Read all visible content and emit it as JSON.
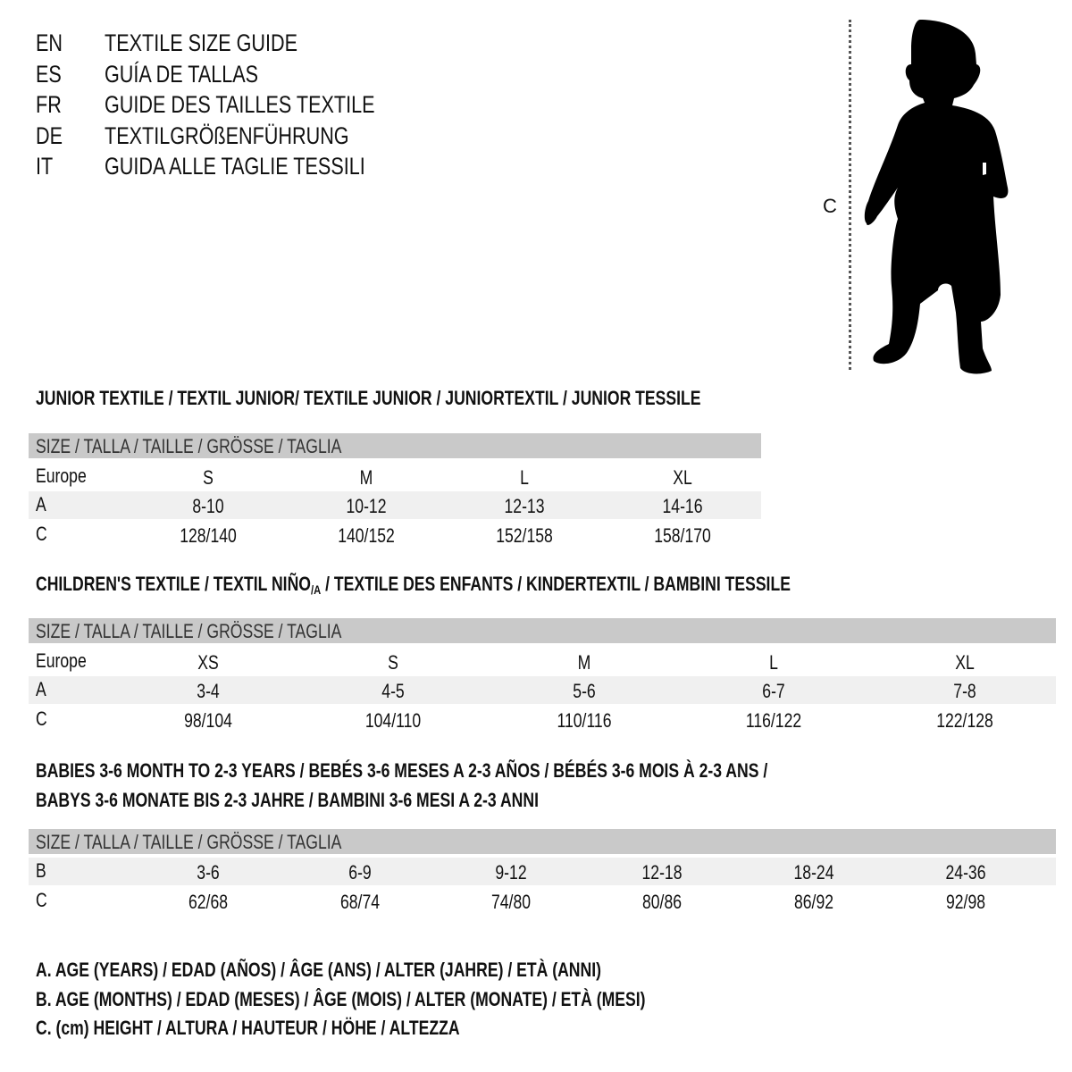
{
  "titles": [
    {
      "code": "EN",
      "text": "TEXTILE SIZE GUIDE"
    },
    {
      "code": "ES",
      "text": "GUÍA DE TALLAS"
    },
    {
      "code": "FR",
      "text": "GUIDE DES TAILLES TEXTILE"
    },
    {
      "code": "DE",
      "text": "TEXTILGRÖßENFÜHRUNG"
    },
    {
      "code": "IT",
      "text": "GUIDA ALLE TAGLIE TESSILI"
    }
  ],
  "figure": {
    "label": "C",
    "icon": "child-silhouette-icon"
  },
  "colors": {
    "header_bg": "#c9c9c9",
    "row_shade": "#f0f0f0"
  },
  "junior": {
    "title": "JUNIOR TEXTILE / TEXTIL JUNIOR/ TEXTILE JUNIOR / JUNIORTEXTIL / JUNIOR TESSILE",
    "header": "SIZE / TALLA / TAILLE / GRÖSSE / TAGLIA",
    "rows": [
      {
        "label": "Europe",
        "cells": [
          "S",
          "M",
          "L",
          "XL"
        ]
      },
      {
        "label": "A",
        "cells": [
          "8-10",
          "10-12",
          "12-13",
          "14-16"
        ]
      },
      {
        "label": "C",
        "cells": [
          "128/140",
          "140/152",
          "152/158",
          "158/170"
        ]
      }
    ]
  },
  "children": {
    "title_a": "CHILDREN'S TEXTILE / TEXTIL NIÑO",
    "title_sub": "/A",
    "title_b": " / TEXTILE DES ENFANTS / KINDERTEXTIL / BAMBINI TESSILE",
    "header": "SIZE / TALLA / TAILLE / GRÖSSE / TAGLIA",
    "rows": [
      {
        "label": "Europe",
        "cells": [
          "XS",
          "S",
          "M",
          "L",
          "XL"
        ]
      },
      {
        "label": "A",
        "cells": [
          "3-4",
          "4-5",
          "5-6",
          "6-7",
          "7-8"
        ]
      },
      {
        "label": "C",
        "cells": [
          "98/104",
          "104/110",
          "110/116",
          "116/122",
          "122/128"
        ]
      }
    ]
  },
  "babies": {
    "title_line1": "BABIES 3-6 MONTH TO 2-3 YEARS / BEBÉS 3-6 MESES A 2-3 AÑOS / BÉBÉS 3-6 MOIS À 2-3 ANS /",
    "title_line2": "BABYS 3-6 MONATE BIS 2-3 JAHRE / BAMBINI 3-6 MESI A 2-3 ANNI",
    "header": "SIZE / TALLA / TAILLE / GRÖSSE / TAGLIA",
    "rows": [
      {
        "label": "B",
        "cells": [
          "3-6",
          "6-9",
          "9-12",
          "12-18",
          "18-24",
          "24-36"
        ]
      },
      {
        "label": "C",
        "cells": [
          "62/68",
          "68/74",
          "74/80",
          "80/86",
          "86/92",
          "92/98"
        ]
      }
    ]
  },
  "legend": [
    "A. AGE (YEARS) / EDAD (AÑOS) / ÂGE (ANS) / ALTER (JAHRE) / ETÀ (ANNI)",
    "B. AGE (MONTHS) / EDAD (MESES) / ÂGE (MOIS) / ALTER (MONATE) / ETÀ (MESI)",
    "C. (cm) HEIGHT / ALTURA / HAUTEUR / HÖHE / ALTEZZA"
  ]
}
